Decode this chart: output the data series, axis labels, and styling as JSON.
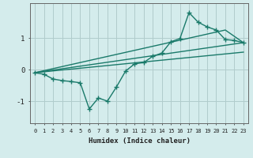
{
  "xlabel": "Humidex (Indice chaleur)",
  "bg_color": "#d4ecec",
  "grid_color": "#b0cccc",
  "line_color": "#1a7a6a",
  "ylim": [
    -1.7,
    2.1
  ],
  "xlim": [
    -0.5,
    23.5
  ],
  "line1_x": [
    0,
    1,
    2,
    3,
    4,
    5,
    6,
    7,
    8,
    9,
    10,
    11,
    12,
    13,
    14,
    15,
    16,
    17,
    18,
    19,
    20,
    21,
    22,
    23
  ],
  "line1_y": [
    -0.1,
    -0.15,
    -0.3,
    -0.35,
    -0.38,
    -0.42,
    -1.25,
    -0.9,
    -1.0,
    -0.55,
    -0.05,
    0.18,
    0.22,
    0.42,
    0.52,
    0.88,
    0.98,
    1.8,
    1.5,
    1.35,
    1.25,
    0.95,
    0.92,
    0.85
  ],
  "line2_x": [
    0,
    21,
    23
  ],
  "line2_y": [
    -0.1,
    1.25,
    0.85
  ],
  "line3_x": [
    0,
    23
  ],
  "line3_y": [
    -0.1,
    0.85
  ],
  "line4_x": [
    0,
    23
  ],
  "line4_y": [
    -0.1,
    0.55
  ],
  "yticks": [
    -1,
    0,
    1
  ],
  "xticks": [
    0,
    1,
    2,
    3,
    4,
    5,
    6,
    7,
    8,
    9,
    10,
    11,
    12,
    13,
    14,
    15,
    16,
    17,
    18,
    19,
    20,
    21,
    22,
    23
  ]
}
